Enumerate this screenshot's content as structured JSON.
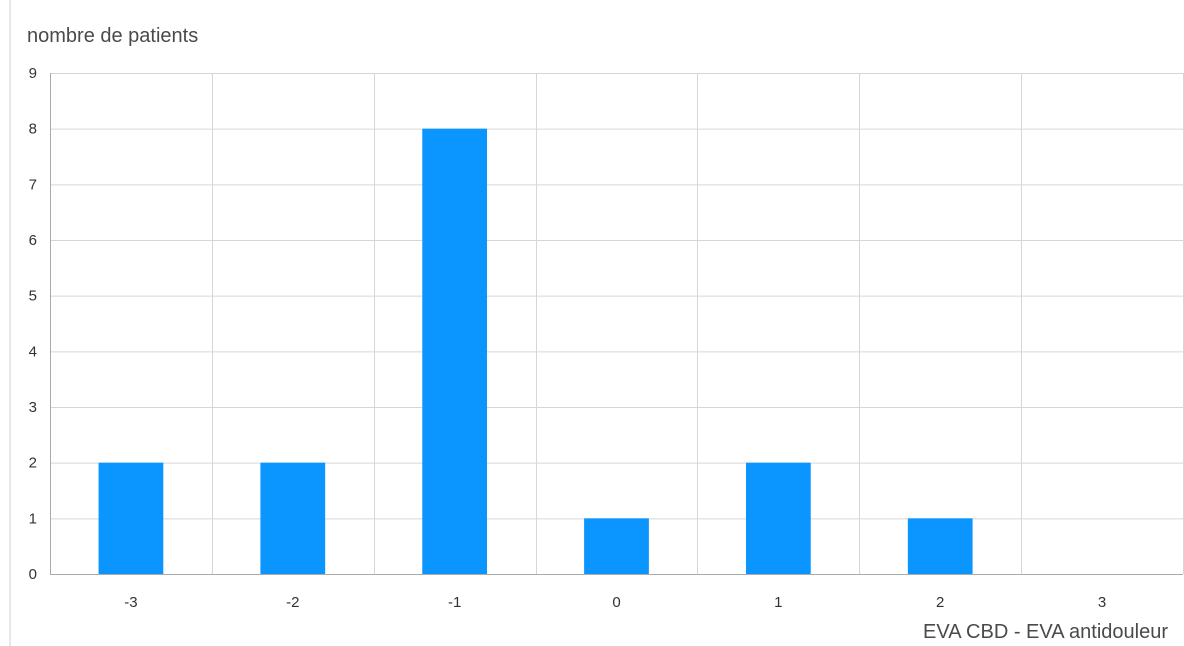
{
  "chart_data": {
    "type": "bar",
    "categories": [
      "-3",
      "-2",
      "-1",
      "0",
      "1",
      "2",
      "3"
    ],
    "values": [
      2,
      2,
      8,
      1,
      2,
      1,
      0
    ],
    "ylabel": "nombre de patients",
    "xlabel": "EVA CBD - EVA antidouleur",
    "ylim": [
      0,
      9
    ],
    "yticks": [
      "0",
      "1",
      "2",
      "3",
      "4",
      "5",
      "6",
      "7",
      "8",
      "9"
    ],
    "grid": true,
    "bar_color": "#0a95ff",
    "grid_color": "#d6d6d6"
  }
}
